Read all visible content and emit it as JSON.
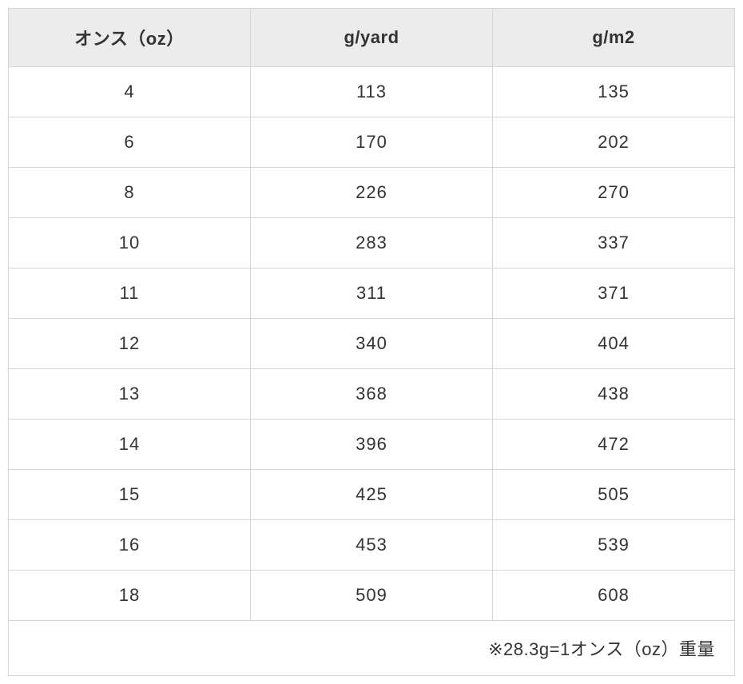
{
  "table": {
    "columns": [
      "オンス（oz）",
      "g/yard",
      "g/m2"
    ],
    "rows": [
      [
        "4",
        "113",
        "135"
      ],
      [
        "6",
        "170",
        "202"
      ],
      [
        "8",
        "226",
        "270"
      ],
      [
        "10",
        "283",
        "337"
      ],
      [
        "11",
        "311",
        "371"
      ],
      [
        "12",
        "340",
        "404"
      ],
      [
        "13",
        "368",
        "438"
      ],
      [
        "14",
        "396",
        "472"
      ],
      [
        "15",
        "425",
        "505"
      ],
      [
        "16",
        "453",
        "539"
      ],
      [
        "18",
        "509",
        "608"
      ]
    ],
    "footnote": "※28.3g=1オンス（oz）重量",
    "header_bg": "#ececec",
    "body_bg": "#ffffff",
    "border_color": "#d6d6d6",
    "text_color": "#333333",
    "header_fontsize": 22,
    "body_fontsize": 22,
    "column_widths_pct": [
      33.33,
      33.33,
      33.33
    ]
  }
}
